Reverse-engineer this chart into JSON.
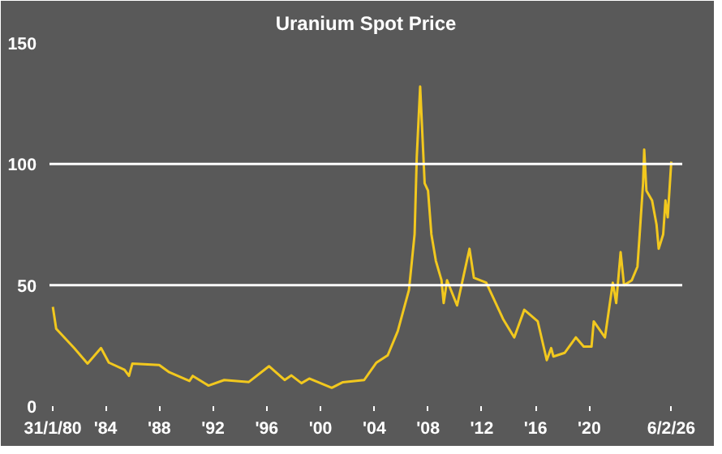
{
  "chart_data": {
    "type": "line",
    "title": "Uranium Spot Price",
    "x": [
      "1980-01-31",
      "1980-05",
      "1981-09",
      "1982-09",
      "1983-09",
      "1984-04",
      "1985-06",
      "1985-10",
      "1986-01",
      "1988-01",
      "1988-10",
      "1990-04",
      "1990-07",
      "1991-09",
      "1992-11",
      "1994-09",
      "1996-03",
      "1997-05",
      "1997-11",
      "1998-08",
      "1999-03",
      "2000-11",
      "2001-09",
      "2003-04",
      "2004-03",
      "2005-01",
      "2005-10",
      "2006-08",
      "2007-01",
      "2007-03",
      "2007-06",
      "2007-10",
      "2008-01",
      "2008-04",
      "2008-08",
      "2009-01",
      "2009-03",
      "2009-06",
      "2010-03",
      "2011-02",
      "2011-06",
      "2012-05",
      "2013-08",
      "2014-06",
      "2015-03",
      "2016-03",
      "2016-11",
      "2017-03",
      "2017-05",
      "2018-03",
      "2019-01",
      "2019-08",
      "2020-03",
      "2020-05",
      "2021-03",
      "2021-10",
      "2022-01",
      "2022-05",
      "2022-08",
      "2023-03",
      "2023-08",
      "2023-10",
      "2024-01",
      "2024-02",
      "2024-04",
      "2024-09",
      "2025-01",
      "2025-03",
      "2025-07",
      "2025-09",
      "2025-11",
      "2026-02-06"
    ],
    "series": [
      {
        "color": "#f2c81e",
        "values": [
          41,
          32,
          24,
          17.6,
          24,
          18,
          15,
          12.5,
          17.6,
          17,
          14,
          10.4,
          12.5,
          8.5,
          10.8,
          10,
          16.5,
          10.8,
          12.7,
          9.5,
          11.4,
          7.6,
          9.9,
          10.8,
          18,
          21,
          31,
          48,
          71,
          103,
          132,
          92,
          89,
          71,
          60,
          52,
          42.6,
          52,
          41.6,
          65,
          53,
          51,
          36,
          28.4,
          39.8,
          35,
          19,
          24,
          20.5,
          22,
          28.4,
          24.6,
          24.6,
          35,
          28.4,
          51,
          42.6,
          63.6,
          50,
          52,
          57.6,
          71,
          92,
          106,
          89,
          85,
          75,
          65,
          71,
          85,
          78,
          101
        ]
      }
    ],
    "ylim": [
      0,
      150
    ],
    "yticks": [
      0,
      50,
      100,
      150
    ],
    "xlim": [
      "1979-11",
      "2026-12"
    ],
    "xticks": [
      {
        "value": "1980-01-31",
        "label": "31/1/80"
      },
      {
        "value": "1984-01-01",
        "label": "'84"
      },
      {
        "value": "1988-01-01",
        "label": "'88"
      },
      {
        "value": "1992-01-01",
        "label": "'92"
      },
      {
        "value": "1996-01-01",
        "label": "'96"
      },
      {
        "value": "2000-01-01",
        "label": "'00"
      },
      {
        "value": "2004-01-01",
        "label": "'04"
      },
      {
        "value": "2008-01-01",
        "label": "'08"
      },
      {
        "value": "2012-01-01",
        "label": "'12"
      },
      {
        "value": "2016-01-01",
        "label": "'16"
      },
      {
        "value": "2020-01-01",
        "label": "'20"
      },
      {
        "value": "2026-02-06",
        "label": "6/2/26"
      }
    ],
    "ref_lines": [
      {
        "axis": "y",
        "value": 50,
        "color": "#ffffff"
      },
      {
        "axis": "y",
        "value": 100,
        "color": "#ffffff"
      }
    ],
    "grid": false,
    "marker": "none",
    "line_style": "solid"
  }
}
